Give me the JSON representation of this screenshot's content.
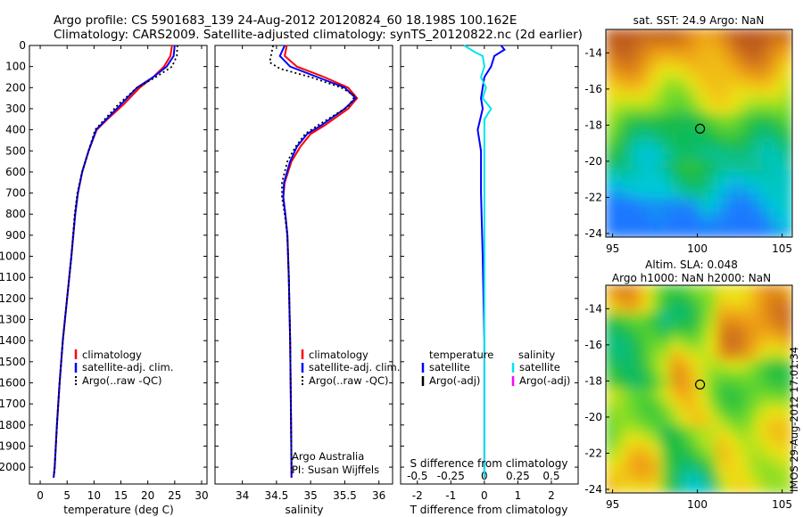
{
  "header": {
    "line1": "Argo profile: CS 5901683_139 24-Aug-2012 20120824_60 18.198S 100.162E",
    "line2": "Climatology: CARS2009. Satellite-adjusted climatology: synTS_20120822.nc (2d earlier)"
  },
  "footer": {
    "stamp": "IMOS 29-Aug-2012 17:01:34"
  },
  "colors": {
    "climatology": "#ff0000",
    "satellite": "#0000ff",
    "argo": "#000000",
    "sal_satellite": "#00e5ee",
    "sal_argo": "#ff00ff"
  },
  "chart_data": [
    {
      "type": "line",
      "name": "temperature-profile",
      "xlabel": "temperature (deg C)",
      "ylabel": "",
      "xlim": [
        -2,
        31
      ],
      "ylim": [
        2080,
        0
      ],
      "xticks": [
        0,
        5,
        10,
        15,
        20,
        25,
        30
      ],
      "yticks": [
        0,
        100,
        200,
        300,
        400,
        500,
        600,
        700,
        800,
        900,
        1000,
        1100,
        1200,
        1300,
        1400,
        1500,
        1600,
        1700,
        1800,
        1900,
        2000
      ],
      "legend": [
        "climatology",
        "satellite-adj. clim.",
        "Argo(..raw -QC)"
      ],
      "series": [
        {
          "name": "climatology",
          "color": "#ff0000",
          "style": "solid",
          "points": [
            [
              24.5,
              0
            ],
            [
              24.2,
              50
            ],
            [
              23.0,
              100
            ],
            [
              21.0,
              150
            ],
            [
              18.5,
              200
            ],
            [
              15.5,
              280
            ],
            [
              12.5,
              350
            ],
            [
              10.5,
              400
            ],
            [
              9.0,
              500
            ],
            [
              7.8,
              600
            ],
            [
              7.0,
              700
            ],
            [
              6.5,
              800
            ],
            [
              5.8,
              1000
            ],
            [
              5.0,
              1200
            ],
            [
              4.2,
              1400
            ],
            [
              3.6,
              1600
            ],
            [
              3.1,
              1800
            ],
            [
              2.7,
              2000
            ],
            [
              2.5,
              2050
            ]
          ]
        },
        {
          "name": "satellite-adj. clim.",
          "color": "#0000ff",
          "style": "solid",
          "points": [
            [
              25.0,
              0
            ],
            [
              24.8,
              50
            ],
            [
              23.5,
              100
            ],
            [
              21.0,
              150
            ],
            [
              18.0,
              200
            ],
            [
              15.0,
              280
            ],
            [
              12.3,
              350
            ],
            [
              10.4,
              400
            ],
            [
              9.0,
              500
            ],
            [
              7.8,
              600
            ],
            [
              7.0,
              700
            ],
            [
              6.5,
              800
            ],
            [
              5.8,
              1000
            ],
            [
              5.0,
              1200
            ],
            [
              4.2,
              1400
            ],
            [
              3.6,
              1600
            ],
            [
              3.1,
              1800
            ],
            [
              2.7,
              2000
            ],
            [
              2.5,
              2050
            ]
          ]
        },
        {
          "name": "Argo(..raw -QC)",
          "color": "#000000",
          "style": "dotted",
          "points": [
            [
              25.5,
              0
            ],
            [
              25.4,
              50
            ],
            [
              24.5,
              100
            ],
            [
              21.5,
              150
            ],
            [
              18.0,
              200
            ],
            [
              14.5,
              280
            ],
            [
              12.0,
              350
            ],
            [
              10.2,
              400
            ],
            [
              9.0,
              500
            ],
            [
              7.8,
              600
            ],
            [
              6.9,
              700
            ],
            [
              6.4,
              800
            ],
            [
              5.8,
              1000
            ],
            [
              5.0,
              1200
            ],
            [
              4.2,
              1400
            ],
            [
              3.6,
              1600
            ],
            [
              3.1,
              1800
            ],
            [
              2.7,
              2000
            ],
            [
              2.6,
              2030
            ]
          ]
        }
      ]
    },
    {
      "type": "line",
      "name": "salinity-profile",
      "xlabel": "salinity",
      "ylabel": "",
      "xlim": [
        33.6,
        36.2
      ],
      "ylim": [
        2080,
        0
      ],
      "xticks": [
        34,
        34.5,
        35,
        35.5,
        36
      ],
      "legend": [
        "climatology",
        "satellite-adj. clim.",
        "Argo(..raw -QC)"
      ],
      "annotations": [
        "Argo Australia",
        "PI: Susan Wijffels"
      ],
      "series": [
        {
          "name": "climatology",
          "color": "#ff0000",
          "style": "solid",
          "points": [
            [
              34.65,
              0
            ],
            [
              34.62,
              50
            ],
            [
              34.8,
              100
            ],
            [
              35.2,
              150
            ],
            [
              35.55,
              200
            ],
            [
              35.68,
              250
            ],
            [
              35.55,
              300
            ],
            [
              35.2,
              380
            ],
            [
              35.0,
              420
            ],
            [
              34.85,
              480
            ],
            [
              34.72,
              550
            ],
            [
              34.62,
              650
            ],
            [
              34.6,
              720
            ],
            [
              34.63,
              800
            ],
            [
              34.66,
              900
            ],
            [
              34.68,
              1100
            ],
            [
              34.7,
              1400
            ],
            [
              34.71,
              1700
            ],
            [
              34.72,
              2000
            ],
            [
              34.72,
              2050
            ]
          ]
        },
        {
          "name": "satellite-adj. clim.",
          "color": "#0000ff",
          "style": "solid",
          "points": [
            [
              34.62,
              0
            ],
            [
              34.55,
              50
            ],
            [
              34.7,
              100
            ],
            [
              35.1,
              150
            ],
            [
              35.5,
              200
            ],
            [
              35.66,
              250
            ],
            [
              35.5,
              300
            ],
            [
              35.15,
              380
            ],
            [
              34.95,
              420
            ],
            [
              34.8,
              480
            ],
            [
              34.7,
              550
            ],
            [
              34.61,
              650
            ],
            [
              34.6,
              720
            ],
            [
              34.63,
              800
            ],
            [
              34.66,
              900
            ],
            [
              34.68,
              1100
            ],
            [
              34.7,
              1400
            ],
            [
              34.71,
              1700
            ],
            [
              34.72,
              2000
            ],
            [
              34.72,
              2050
            ]
          ]
        },
        {
          "name": "Argo(..raw -QC)",
          "color": "#000000",
          "style": "dotted",
          "points": [
            [
              34.45,
              0
            ],
            [
              34.4,
              80
            ],
            [
              34.55,
              110
            ],
            [
              35.0,
              150
            ],
            [
              35.45,
              200
            ],
            [
              35.65,
              240
            ],
            [
              35.55,
              290
            ],
            [
              35.1,
              380
            ],
            [
              34.92,
              420
            ],
            [
              34.78,
              480
            ],
            [
              34.66,
              550
            ],
            [
              34.58,
              650
            ],
            [
              34.58,
              720
            ],
            [
              34.62,
              800
            ],
            [
              34.66,
              900
            ],
            [
              34.68,
              1100
            ],
            [
              34.7,
              1400
            ],
            [
              34.71,
              1700
            ],
            [
              34.72,
              2000
            ],
            [
              34.72,
              2030
            ]
          ]
        }
      ]
    },
    {
      "type": "line",
      "name": "difference-profile",
      "xlabel": "T difference from climatology",
      "xlabel_top": "S difference from climatology",
      "xlim": [
        -2.5,
        2.8
      ],
      "ylim": [
        2080,
        0
      ],
      "xticks": [
        -2,
        -1,
        0,
        1,
        2
      ],
      "s_xticks": [
        "-0.5",
        "-0.25",
        "0",
        "0.25",
        "0.5"
      ],
      "legend": {
        "temperature_title": "temperature",
        "salinity_title": "salinity",
        "items": [
          "satellite",
          "Argo(-adj)",
          "satellite",
          "Argo(-adj)"
        ]
      },
      "series": [
        {
          "name": "temperature satellite",
          "color": "#0000ff",
          "style": "solid",
          "points": [
            [
              0.5,
              0
            ],
            [
              0.6,
              20
            ],
            [
              0.3,
              50
            ],
            [
              0.2,
              100
            ],
            [
              0.0,
              150
            ],
            [
              -0.1,
              250
            ],
            [
              -0.05,
              300
            ],
            [
              -0.2,
              400
            ],
            [
              -0.1,
              500
            ],
            [
              -0.1,
              700
            ],
            [
              -0.05,
              1000
            ],
            [
              0.0,
              1400
            ],
            [
              0.0,
              2050
            ]
          ]
        },
        {
          "name": "salinity satellite",
          "color": "#00e5ee",
          "style": "solid",
          "points": [
            [
              -0.6,
              0
            ],
            [
              -0.3,
              30
            ],
            [
              -0.05,
              50
            ],
            [
              0.0,
              100
            ],
            [
              -0.1,
              150
            ],
            [
              0.05,
              200
            ],
            [
              -0.05,
              250
            ],
            [
              0.2,
              300
            ],
            [
              0.0,
              350
            ],
            [
              0.0,
              700
            ],
            [
              0.0,
              2050
            ]
          ]
        }
      ]
    },
    {
      "type": "heatmap",
      "name": "sst-map",
      "title": "sat. SST: 24.9 Argo: NaN",
      "xticks": [
        "95",
        "100",
        "105"
      ],
      "yticks": [
        "-14",
        "-16",
        "-18",
        "-20",
        "-22",
        "-24"
      ],
      "xlim": [
        94.6,
        105.6
      ],
      "ylim": [
        -24.2,
        -12.7
      ],
      "marker": [
        100.16,
        -18.2
      ]
    },
    {
      "type": "heatmap",
      "name": "sla-map",
      "title_line1": "Altim. SLA: 0.048",
      "title_line2": "Argo h1000: NaN h2000: NaN",
      "xticks": [
        "95",
        "100",
        "105"
      ],
      "yticks": [
        "-14",
        "-16",
        "-18",
        "-20",
        "-22",
        "-24"
      ],
      "xlim": [
        94.6,
        105.6
      ],
      "ylim": [
        -24.2,
        -12.7
      ],
      "marker": [
        100.16,
        -18.2
      ]
    }
  ]
}
